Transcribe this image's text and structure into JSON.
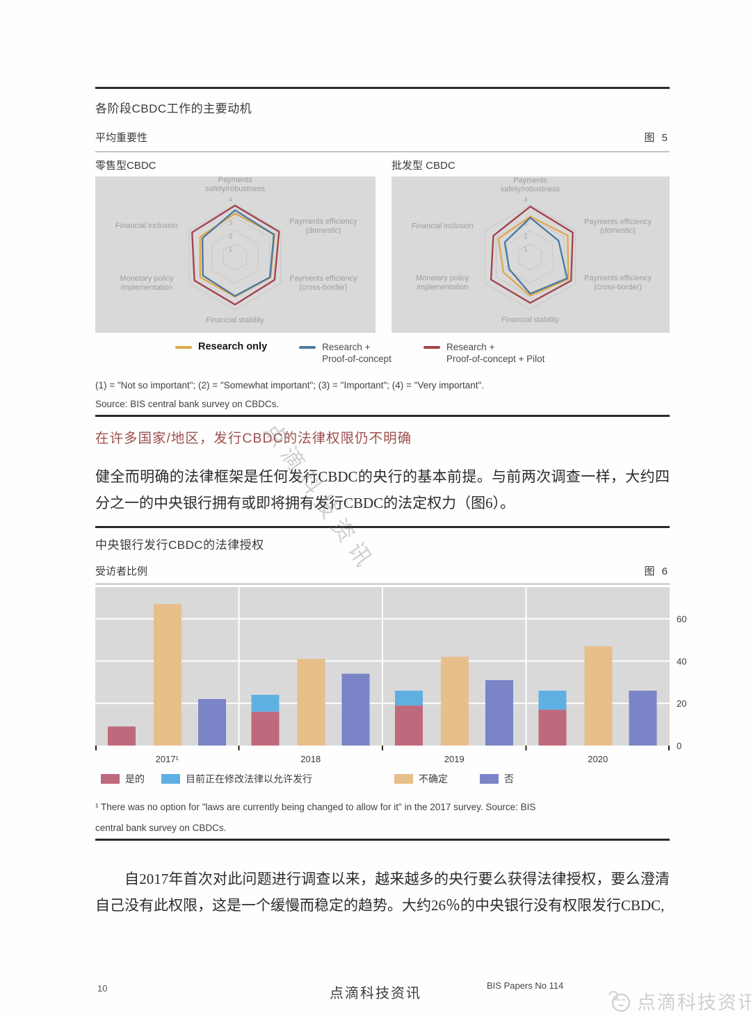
{
  "page": {
    "number": "10",
    "footer_center": "点滴科技资讯",
    "footer_right": "BIS Papers No 114",
    "watermark_diagonal": "点滴科技资讯",
    "watermark_corner": "点滴科技资讯"
  },
  "figure5": {
    "title": "各阶段CBDC工作的主要动机",
    "subtitle": "平均重要性",
    "figure_label": "图 5",
    "left_panel_title": "零售型CBDC",
    "right_panel_title": "批发型 CBDC",
    "legend": [
      {
        "line1": "Research only",
        "line2": "",
        "color": "#dfa94d"
      },
      {
        "line1": "Research +",
        "line2": "Proof-of-concept",
        "color": "#4e7aa0"
      },
      {
        "line1": "Research +",
        "line2": "Proof-of-concept + Pilot",
        "color": "#a4434e"
      }
    ],
    "footnote": "(1) = \"Not so important\"; (2) = \"Somewhat important\"; (3) = \"Important\"; (4) = \"Very important\".",
    "source": "Source: BIS central bank survey on CBDCs."
  },
  "section_heading": "在许多国家/地区，发行CBDC的法律权限仍不明确",
  "paragraph1": "健全而明确的法律框架是任何发行CBDC的央行的基本前提。与前两次调查一样，大约四分之一的中央银行拥有或即将拥有发行CBDC的法定权力（图6）。",
  "figure6": {
    "title": "中央银行发行CBDC的法律授权",
    "subtitle": "受访者比例",
    "figure_label": "图 6",
    "legend": [
      {
        "label": "是的",
        "color": "#bf6a7c"
      },
      {
        "label": "目前正在修改法律以允许发行",
        "color": "#5fb0e2"
      },
      {
        "label": "不确定",
        "color": "#e6bf8a"
      },
      {
        "label": "否",
        "color": "#7a84c6"
      }
    ],
    "footnote_line1": "¹  There was no option for \"laws are currently being changed to allow for it\" in the 2017 survey. Source: BIS",
    "footnote_line2": "central bank survey on CBDCs."
  },
  "paragraph2": "自2017年首次对此问题进行调查以来，越来越多的央行要么获得法律授权，要么澄清自己没有此权限，这是一个缓慢而稳定的趋势。大约26％的中央银行没有权限发行CBDC,",
  "chart_data": [
    {
      "type": "radar",
      "title": "零售型CBDC",
      "axes": [
        "Payments\nsafety/robustness",
        "Payments efficiency\n(domestic)",
        "Payments efficiency\n(cross-border)",
        "Financial stability",
        "Monetary policy\nimplementation",
        "Financial inclusion"
      ],
      "scale": {
        "min": 0,
        "max": 4,
        "rings": [
          1,
          2,
          3,
          4
        ]
      },
      "series": [
        {
          "name": "Research only",
          "color": "#dfa94d",
          "values": [
            3.3,
            3.45,
            3.1,
            3.0,
            3.05,
            3.05
          ]
        },
        {
          "name": "Research + Proof-of-concept",
          "color": "#4e7aa0",
          "values": [
            3.55,
            3.4,
            3.05,
            2.95,
            2.8,
            2.85
          ]
        },
        {
          "name": "Research + Proof-of-concept + Pilot",
          "color": "#a4434e",
          "values": [
            3.9,
            3.85,
            3.45,
            3.6,
            3.55,
            3.75
          ]
        }
      ]
    },
    {
      "type": "radar",
      "title": "批发型 CBDC",
      "axes": [
        "Payments\nsafety/robustness",
        "Payments efficiency\n(domestic)",
        "Payments efficiency\n(cross-border)",
        "Financial stability",
        "Monetary policy\nimplementation",
        "Financial inclusion"
      ],
      "scale": {
        "min": 0,
        "max": 4,
        "rings": [
          1,
          2,
          3,
          4
        ]
      },
      "series": [
        {
          "name": "Research only",
          "color": "#dfa94d",
          "values": [
            3.1,
            3.3,
            3.35,
            2.95,
            2.35,
            2.8
          ]
        },
        {
          "name": "Research + Proof-of-concept",
          "color": "#4e7aa0",
          "values": [
            3.0,
            2.5,
            3.25,
            2.8,
            1.85,
            2.25
          ]
        },
        {
          "name": "Research + Proof-of-concept + Pilot",
          "color": "#a4434e",
          "values": [
            3.85,
            3.75,
            3.6,
            3.5,
            3.45,
            3.25
          ]
        }
      ]
    },
    {
      "type": "bar",
      "title": "中央银行发行CBDC的法律授权",
      "ylabel": "受访者比例",
      "categories": [
        "2017¹",
        "2018",
        "2019",
        "2020"
      ],
      "series": [
        {
          "name": "是的",
          "color": "#bf6a7c",
          "stack": "a",
          "values": [
            9,
            16,
            19,
            17
          ]
        },
        {
          "name": "目前正在修改法律以允许发行",
          "color": "#5fb0e2",
          "stack": "a",
          "values": [
            0,
            8,
            7,
            9
          ]
        },
        {
          "name": "不确定",
          "color": "#e6bf8a",
          "values": [
            67,
            41,
            42,
            47
          ]
        },
        {
          "name": "否",
          "color": "#7a84c6",
          "values": [
            22,
            34,
            31,
            26
          ]
        }
      ],
      "ylim": [
        0,
        75
      ],
      "yticks": [
        0,
        20,
        40,
        60
      ],
      "ytick_side": "right",
      "grid": true,
      "plot_bg": "#d9d9d9"
    }
  ]
}
